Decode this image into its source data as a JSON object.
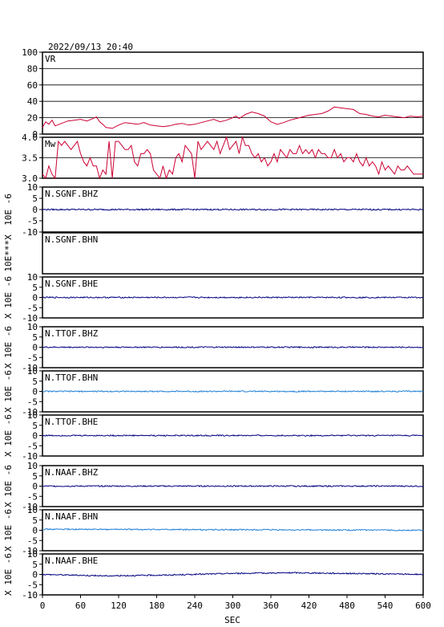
{
  "header": {
    "timestamp": "2022/09/13 20:40"
  },
  "x_axis": {
    "label": "SEC",
    "ticks": [
      "0",
      "60",
      "120",
      "180",
      "240",
      "300",
      "360",
      "420",
      "480",
      "540",
      "600"
    ],
    "range": [
      0,
      600
    ]
  },
  "colors": {
    "frame": "#000000",
    "trace_red": "#cc0033",
    "trace_dark": "#000080",
    "trace_light": "#1e7fd6"
  },
  "chart_data": [
    {
      "type": "line",
      "panel_label": "VR",
      "ylim": [
        0,
        100
      ],
      "yticks": [
        "100",
        "80",
        "60",
        "40",
        "20",
        "0"
      ],
      "grid": true,
      "color": "#cc0033",
      "x": [
        0,
        5,
        10,
        15,
        20,
        30,
        40,
        50,
        60,
        70,
        80,
        85,
        90,
        95,
        100,
        110,
        120,
        130,
        140,
        150,
        160,
        170,
        180,
        190,
        200,
        210,
        220,
        230,
        240,
        250,
        260,
        270,
        280,
        290,
        300,
        305,
        310,
        320,
        330,
        340,
        350,
        360,
        370,
        380,
        390,
        400,
        410,
        420,
        430,
        440,
        450,
        460,
        470,
        480,
        490,
        500,
        510,
        520,
        530,
        540,
        550,
        560,
        570,
        580,
        590,
        600
      ],
      "y": [
        8,
        15,
        12,
        17,
        10,
        13,
        16,
        17,
        18,
        16,
        19,
        21,
        15,
        12,
        8,
        7,
        11,
        14,
        13,
        12,
        14,
        11,
        10,
        9,
        10,
        12,
        13,
        11,
        12,
        14,
        16,
        18,
        15,
        17,
        20,
        22,
        19,
        24,
        27,
        25,
        22,
        15,
        12,
        14,
        17,
        19,
        21,
        23,
        24,
        25,
        28,
        33,
        32,
        31,
        30,
        25,
        24,
        22,
        21,
        23,
        22,
        21,
        20,
        22,
        21,
        22
      ]
    },
    {
      "type": "line",
      "panel_label": "Mw",
      "ylim": [
        3.0,
        4.0
      ],
      "yticks": [
        "4.0",
        "3.5",
        "3.0"
      ],
      "grid": true,
      "color": "#cc0033",
      "x": [
        0,
        5,
        10,
        15,
        20,
        25,
        30,
        35,
        40,
        45,
        50,
        55,
        60,
        65,
        70,
        75,
        80,
        85,
        90,
        95,
        100,
        105,
        110,
        115,
        120,
        125,
        130,
        135,
        140,
        145,
        150,
        155,
        160,
        165,
        170,
        175,
        180,
        185,
        190,
        195,
        200,
        205,
        210,
        215,
        220,
        225,
        230,
        235,
        240,
        245,
        250,
        255,
        260,
        265,
        270,
        275,
        280,
        285,
        290,
        295,
        300,
        305,
        310,
        315,
        320,
        325,
        330,
        335,
        340,
        345,
        350,
        355,
        360,
        365,
        370,
        375,
        380,
        385,
        390,
        395,
        400,
        405,
        410,
        415,
        420,
        425,
        430,
        435,
        440,
        445,
        450,
        455,
        460,
        465,
        470,
        475,
        480,
        485,
        490,
        495,
        500,
        505,
        510,
        515,
        520,
        525,
        530,
        535,
        540,
        545,
        550,
        555,
        560,
        565,
        570,
        575,
        580,
        585,
        590,
        595,
        600
      ],
      "y": [
        3.1,
        3.0,
        3.3,
        3.1,
        3.0,
        3.9,
        3.8,
        3.9,
        3.8,
        3.7,
        3.8,
        3.9,
        3.6,
        3.4,
        3.3,
        3.5,
        3.3,
        3.3,
        3.0,
        3.2,
        3.1,
        3.9,
        3.0,
        3.9,
        3.9,
        3.8,
        3.7,
        3.7,
        3.8,
        3.4,
        3.3,
        3.6,
        3.6,
        3.7,
        3.6,
        3.2,
        3.1,
        3.0,
        3.3,
        3.0,
        3.2,
        3.1,
        3.5,
        3.6,
        3.4,
        3.8,
        3.7,
        3.6,
        3.0,
        3.9,
        3.7,
        3.8,
        3.9,
        3.8,
        3.7,
        3.9,
        3.6,
        3.8,
        4.0,
        3.7,
        3.8,
        3.9,
        3.6,
        4.0,
        3.8,
        3.8,
        3.6,
        3.5,
        3.6,
        3.4,
        3.5,
        3.3,
        3.4,
        3.6,
        3.4,
        3.7,
        3.6,
        3.5,
        3.7,
        3.6,
        3.6,
        3.8,
        3.6,
        3.7,
        3.6,
        3.7,
        3.5,
        3.7,
        3.6,
        3.6,
        3.5,
        3.5,
        3.7,
        3.5,
        3.6,
        3.4,
        3.5,
        3.5,
        3.4,
        3.6,
        3.4,
        3.3,
        3.5,
        3.3,
        3.4,
        3.3,
        3.1,
        3.4,
        3.2,
        3.3,
        3.2,
        3.1,
        3.3,
        3.2,
        3.2,
        3.3,
        3.2,
        3.1,
        3.1,
        3.1,
        3.1
      ]
    },
    {
      "type": "line",
      "panel_label": "N.SGNF.BHZ",
      "ylabel": "10E -6",
      "ylim": [
        -10,
        10
      ],
      "yticks": [
        "10",
        "5",
        "0",
        "-5",
        "-10"
      ],
      "color": "#000080",
      "x": [
        0,
        600
      ],
      "y": [
        0,
        0
      ]
    },
    {
      "type": "line",
      "panel_label": "N.SGNF.BHN",
      "ylabel": "10E***X",
      "ylim": [
        -10,
        10
      ],
      "yticks": [],
      "color": "#000080",
      "x": [],
      "y": []
    },
    {
      "type": "line",
      "panel_label": "N.SGNF.BHE",
      "ylabel": "X 10E -6",
      "ylim": [
        -10,
        10
      ],
      "yticks": [
        "10",
        "5",
        "0",
        "-5",
        "-10"
      ],
      "color": "#000080",
      "x": [
        0,
        600
      ],
      "y": [
        0,
        0
      ]
    },
    {
      "type": "line",
      "panel_label": "N.TTOF.BHZ",
      "ylabel": "X 10E -6",
      "ylim": [
        -10,
        10
      ],
      "yticks": [
        "10",
        "5",
        "0",
        "-5",
        "-10"
      ],
      "color": "#000080",
      "x": [
        0,
        600
      ],
      "y": [
        0,
        0
      ]
    },
    {
      "type": "line",
      "panel_label": "N.TTOF.BHN",
      "ylabel": "X 10E -6",
      "ylim": [
        -10,
        10
      ],
      "yticks": [
        "10",
        "5",
        "0",
        "-5",
        "-10"
      ],
      "color": "#1e7fd6",
      "x": [
        0,
        600
      ],
      "y": [
        0,
        0
      ]
    },
    {
      "type": "line",
      "panel_label": "N.TTOF.BHE",
      "ylabel": "X 10E -6",
      "ylim": [
        -10,
        10
      ],
      "yticks": [
        "10",
        "5",
        "0",
        "-5",
        "-10"
      ],
      "color": "#000080",
      "x": [
        0,
        600
      ],
      "y": [
        0,
        0
      ]
    },
    {
      "type": "line",
      "panel_label": "N.NAAF.BHZ",
      "ylabel": "X 10E -6",
      "ylim": [
        -10,
        10
      ],
      "yticks": [
        "10",
        "5",
        "0",
        "-5",
        "-10"
      ],
      "color": "#000080",
      "x": [
        0,
        600
      ],
      "y": [
        0,
        0
      ]
    },
    {
      "type": "line",
      "panel_label": "N.NAAF.BHN",
      "ylabel": "X 10E -6",
      "ylim": [
        -10,
        10
      ],
      "yticks": [
        "10",
        "5",
        "0",
        "-5",
        "-10"
      ],
      "color": "#1e7fd6",
      "x": [
        0,
        600
      ],
      "y": [
        0.5,
        0
      ]
    },
    {
      "type": "line",
      "panel_label": "N.NAAF.BHE",
      "ylabel": "X 10E -6",
      "ylim": [
        -10,
        10
      ],
      "yticks": [
        "10",
        "5",
        "0",
        "-5",
        "-10"
      ],
      "color": "#000080",
      "x": [
        0,
        100,
        200,
        300,
        400,
        500,
        600
      ],
      "y": [
        0,
        -0.7,
        -0.3,
        0.5,
        0.8,
        0.4,
        0
      ]
    }
  ]
}
